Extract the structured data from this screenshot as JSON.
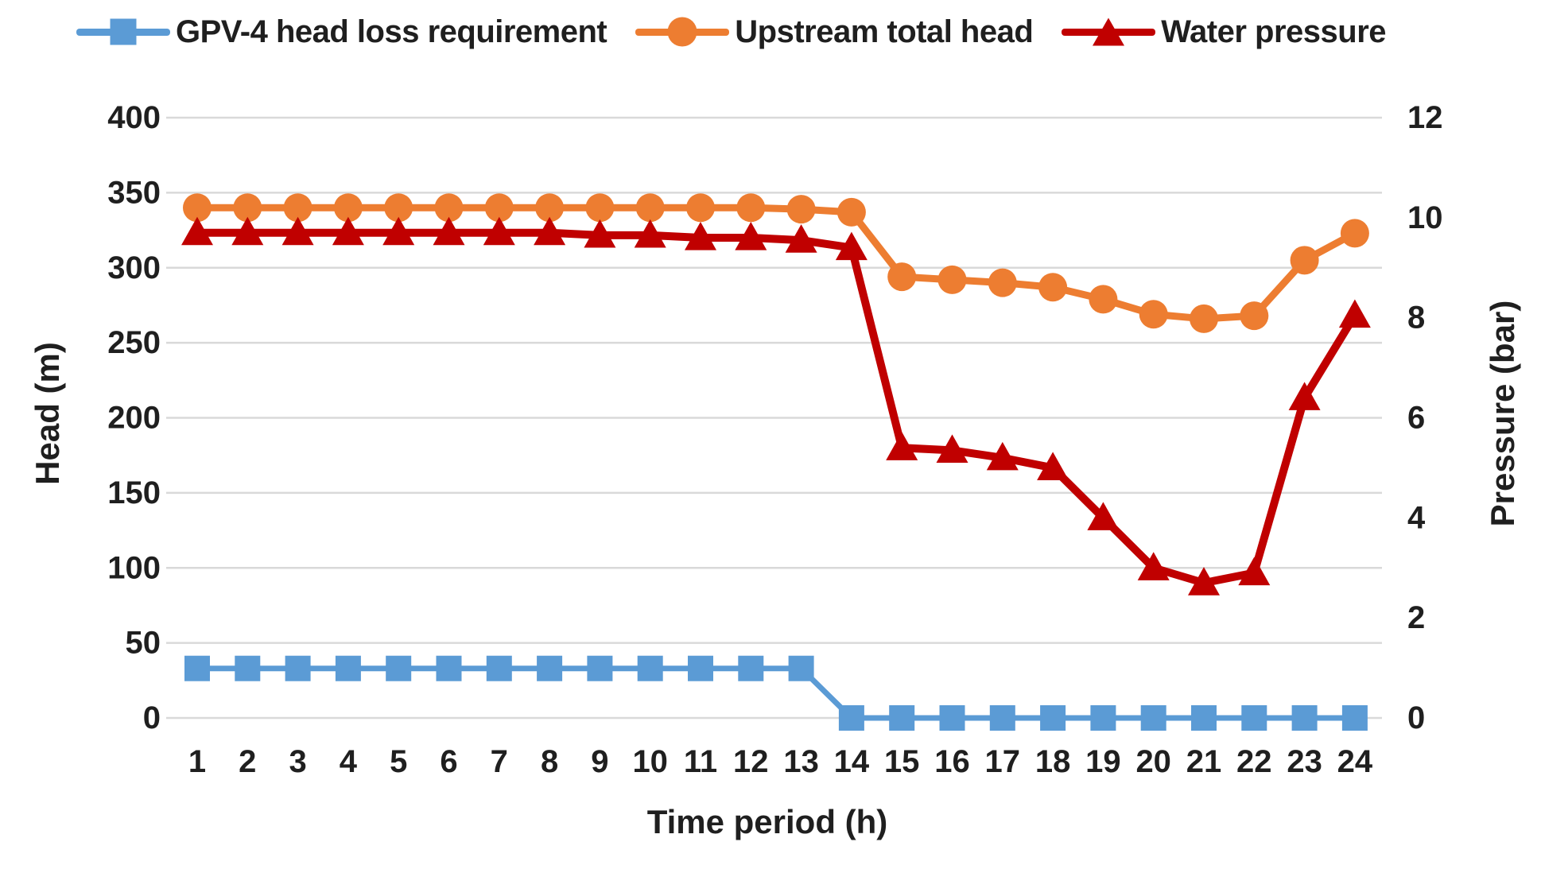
{
  "chart_data": {
    "type": "line",
    "title": "",
    "xlabel": "Time period (h)",
    "ylabel_left": "Head (m)",
    "ylabel_right": "Pressure (bar)",
    "legend_position": "top",
    "grid": "horizontal",
    "x": [
      1,
      2,
      3,
      4,
      5,
      6,
      7,
      8,
      9,
      10,
      11,
      12,
      13,
      14,
      15,
      16,
      17,
      18,
      19,
      20,
      21,
      22,
      23,
      24
    ],
    "left_axis": {
      "label": "Head (m)",
      "min": 0,
      "max": 400,
      "ticks": [
        0,
        50,
        100,
        150,
        200,
        250,
        300,
        350,
        400
      ]
    },
    "right_axis": {
      "label": "Pressure (bar)",
      "min": 0,
      "max": 12,
      "ticks": [
        0,
        2,
        4,
        6,
        8,
        10,
        12
      ]
    },
    "colors": {
      "gridline": "#D9D9D9",
      "text": "#1f1f1f",
      "background": "#ffffff"
    },
    "series": [
      {
        "name": "GPV-4 head loss requirement",
        "axis": "left",
        "unit": "m",
        "color": "#5B9BD5",
        "marker": "square",
        "values": [
          33,
          33,
          33,
          33,
          33,
          33,
          33,
          33,
          33,
          33,
          33,
          33,
          33,
          0,
          0,
          0,
          0,
          0,
          0,
          0,
          0,
          0,
          0,
          0
        ]
      },
      {
        "name": "Upstream total head",
        "axis": "left",
        "unit": "m",
        "color": "#ED7D31",
        "marker": "circle",
        "values": [
          340,
          340,
          340,
          340,
          340,
          340,
          340,
          340,
          340,
          340,
          340,
          340,
          339,
          337,
          294,
          292,
          290,
          287,
          279,
          269,
          266,
          268,
          305,
          323
        ]
      },
      {
        "name": "Water pressure",
        "axis": "right",
        "unit": "bar",
        "color": "#C00000",
        "marker": "triangle",
        "values": [
          9.7,
          9.7,
          9.7,
          9.7,
          9.7,
          9.7,
          9.7,
          9.7,
          9.65,
          9.65,
          9.6,
          9.6,
          9.55,
          9.4,
          5.4,
          5.35,
          5.2,
          5.0,
          4.0,
          3.0,
          2.7,
          2.9,
          6.4,
          8.05
        ]
      }
    ]
  }
}
